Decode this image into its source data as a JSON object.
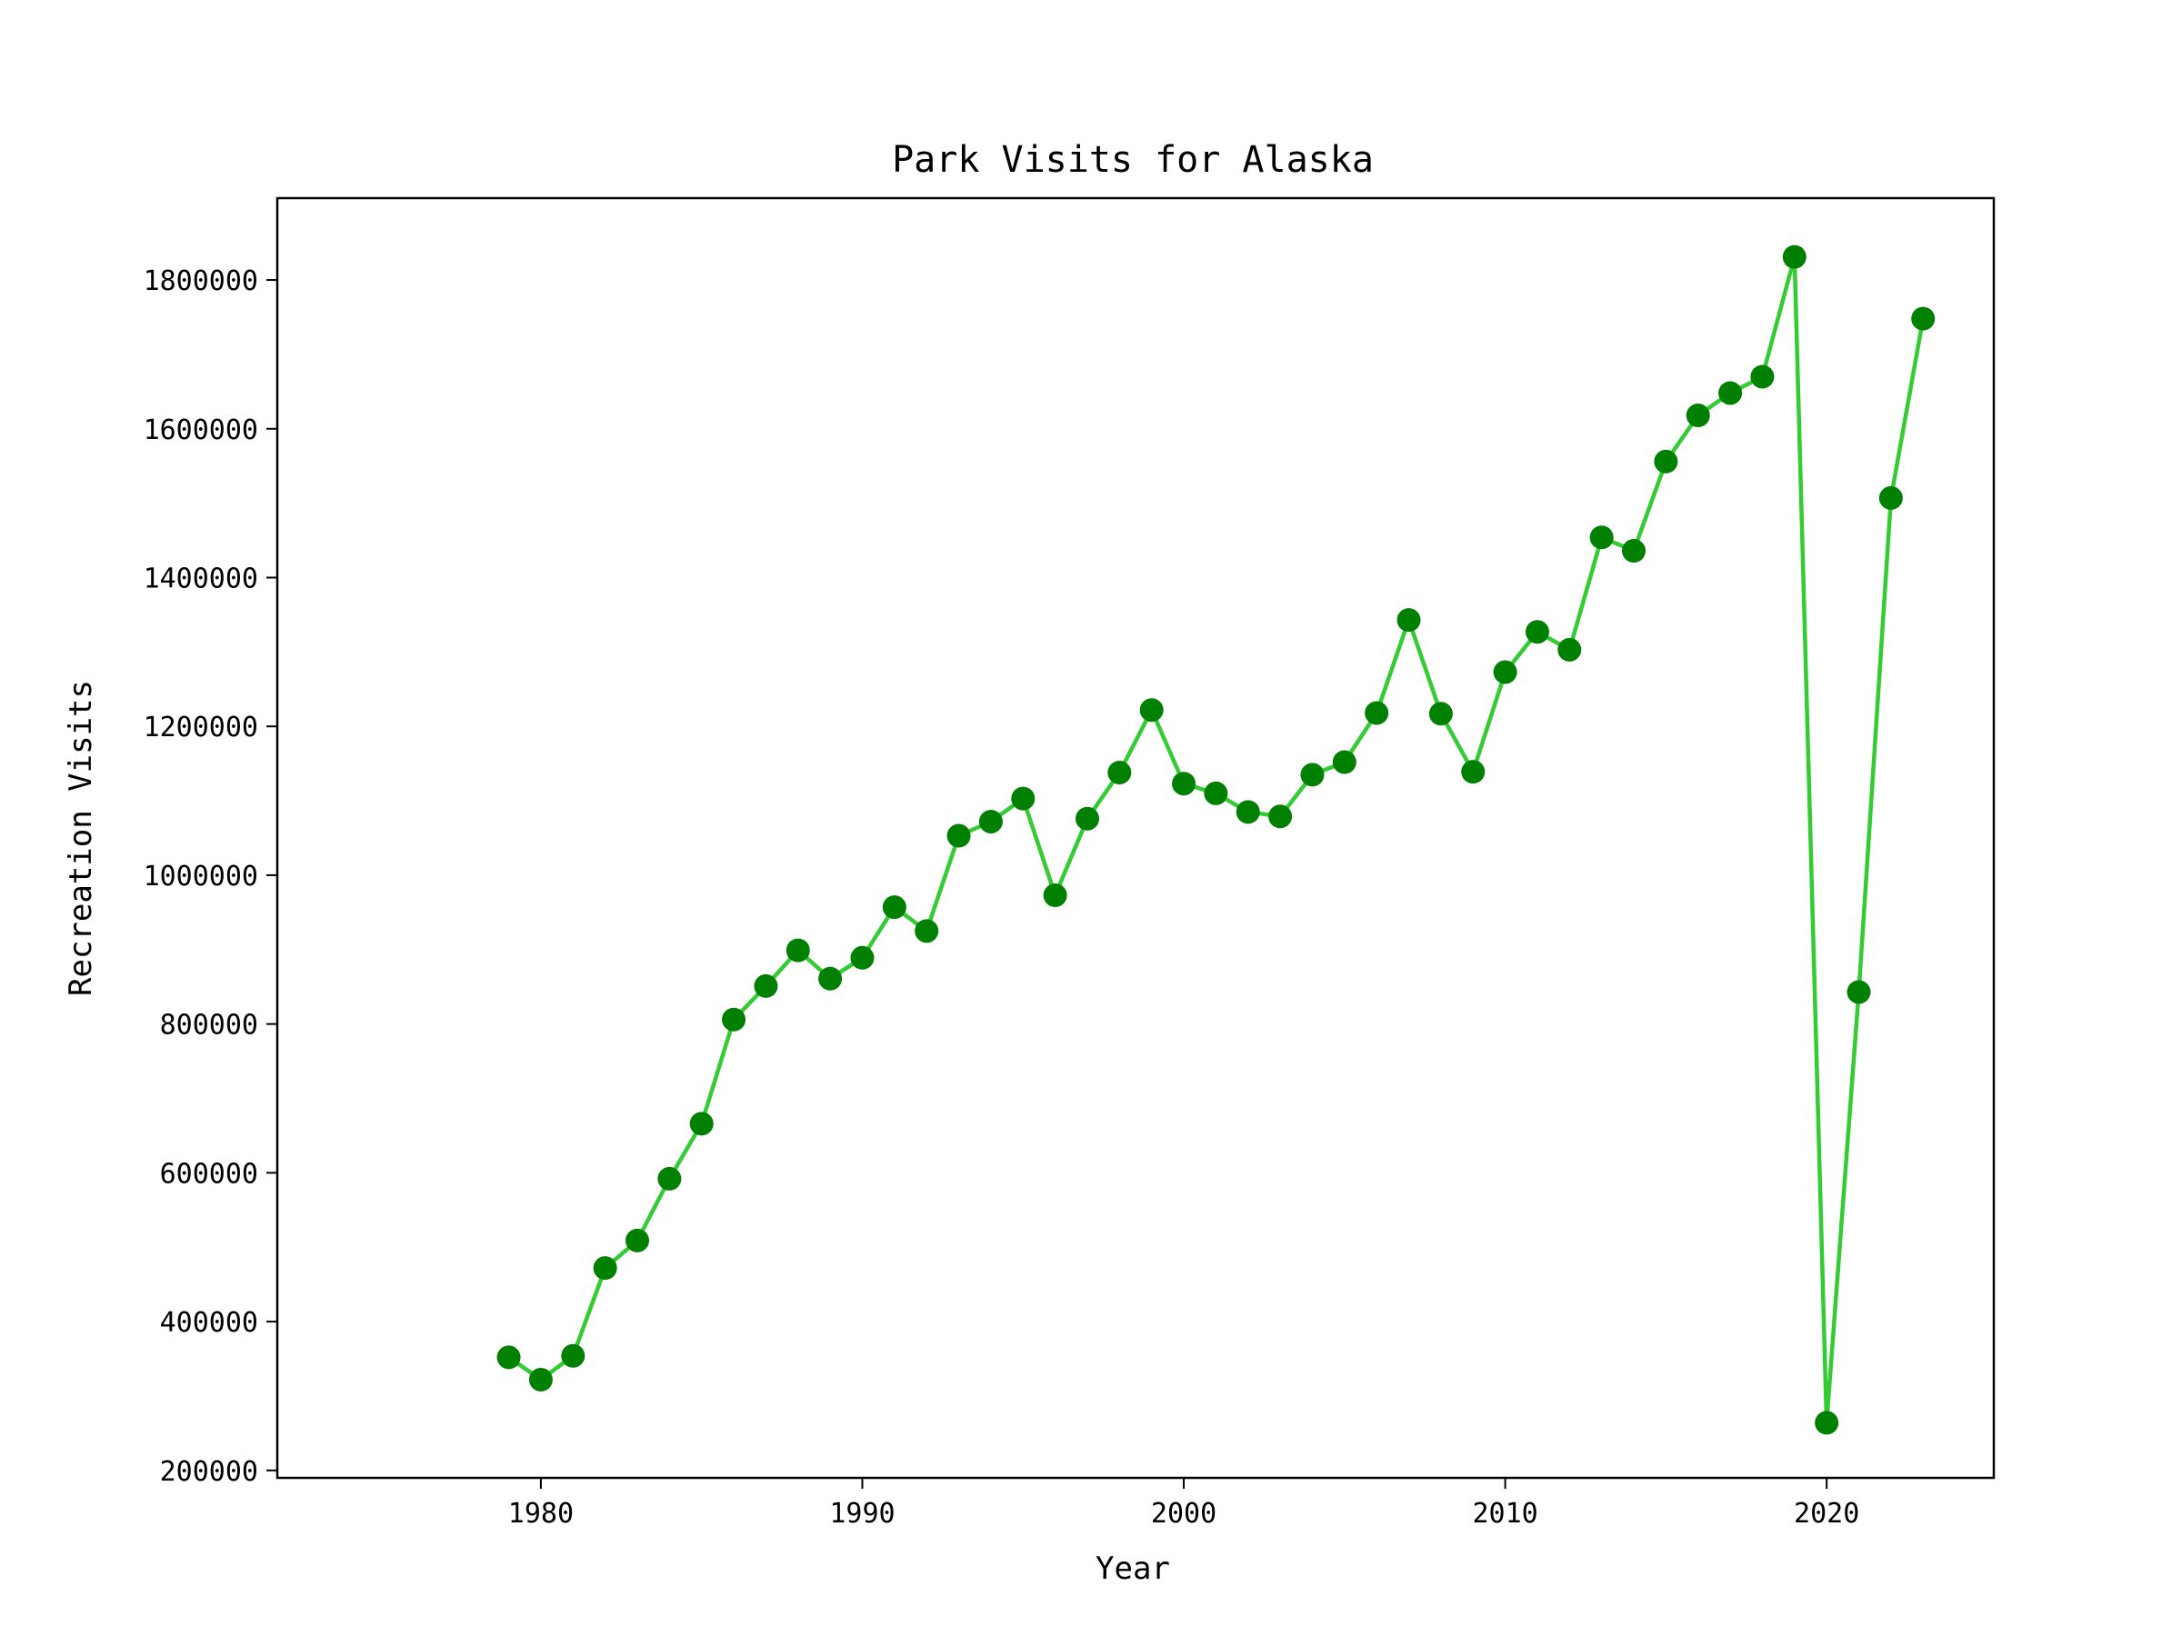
{
  "chart_data": {
    "type": "line",
    "title": "Park Visits for Alaska",
    "xlabel": "Year",
    "ylabel": "Recreation Visits",
    "xlim": [
      1971.8,
      2025.2
    ],
    "ylim": [
      190000,
      1910000
    ],
    "xticks": [
      1980,
      1990,
      2000,
      2010,
      2020
    ],
    "yticks": [
      200000,
      400000,
      600000,
      800000,
      1000000,
      1200000,
      1400000,
      1600000,
      1800000
    ],
    "grid": false,
    "legend": "none",
    "line_color": "#33cc33",
    "marker_color": "#008000",
    "series": [
      {
        "x": [
          1979,
          1980,
          1981,
          1982,
          1983,
          1984,
          1985,
          1986,
          1987,
          1988,
          1989,
          1990,
          1991,
          1992,
          1993,
          1994,
          1995,
          1996,
          1997,
          1998,
          1999,
          2000,
          2001,
          2002,
          2003,
          2004,
          2005,
          2006,
          2007,
          2008,
          2009,
          2010,
          2011,
          2012,
          2013,
          2014,
          2015,
          2016,
          2017,
          2018,
          2019,
          2020,
          2021,
          2022,
          2023
        ],
        "values": [
          352000,
          322000,
          354000,
          472000,
          509000,
          592000,
          666000,
          806000,
          851000,
          899000,
          861000,
          889000,
          957000,
          925000,
          1053000,
          1072000,
          1103000,
          973000,
          1076000,
          1138000,
          1222000,
          1123000,
          1110000,
          1085000,
          1079000,
          1135000,
          1152000,
          1218000,
          1343000,
          1217000,
          1139000,
          1273000,
          1327000,
          1303000,
          1454000,
          1436000,
          1556000,
          1618000,
          1648000,
          1670000,
          1831000,
          264000,
          843000,
          1507000,
          1748000
        ]
      }
    ]
  }
}
